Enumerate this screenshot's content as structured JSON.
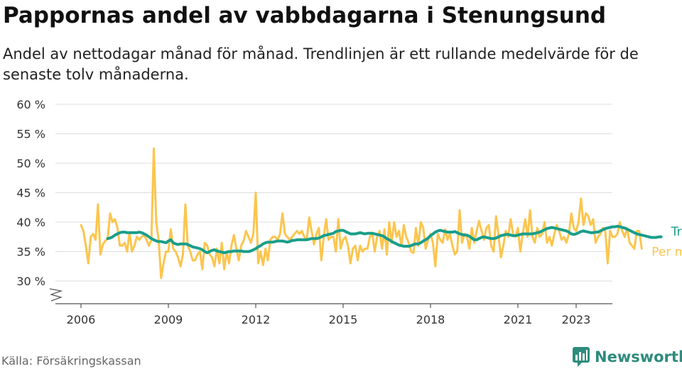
{
  "header": {
    "title": "Pappornas andel av vabbdagarna i Stenungsund",
    "subtitle": "Andel av nettodagar månad för månad. Trendlinjen är ett rullande medelvärde för de senaste tolv månaderna."
  },
  "footer": {
    "source": "Källa: Försäkringskassan",
    "brand": "Newsworthy"
  },
  "chart_data": {
    "type": "line",
    "title": "Pappornas andel av vabbdagarna i Stenungsund",
    "xlabel": "",
    "ylabel": "",
    "ylim": [
      30,
      60
    ],
    "y_ticks": [
      30,
      35,
      40,
      45,
      50,
      55,
      60
    ],
    "y_tick_labels": [
      "30 %",
      "35 %",
      "40 %",
      "45 %",
      "50 %",
      "55 %",
      "60 %"
    ],
    "x_ticks": [
      2006,
      2009,
      2012,
      2015,
      2018,
      2021,
      2023
    ],
    "x_tick_labels": [
      "2006",
      "2009",
      "2012",
      "2015",
      "2018",
      "2021",
      "2023"
    ],
    "x_range": [
      "2006-01",
      "2023-05"
    ],
    "grid": true,
    "axis_break": true,
    "legend_placement": "right end of lines",
    "colors": {
      "monthly": "#fcc54e",
      "trend": "#1a9e8a"
    },
    "series": [
      {
        "name": "Per månad",
        "start": "2006-01",
        "values": [
          39.5,
          38.5,
          36,
          33,
          37.5,
          38,
          37,
          43,
          34.5,
          36.2,
          36.8,
          37.2,
          41.5,
          40,
          40.5,
          39,
          36,
          36,
          36.5,
          35,
          38.3,
          35,
          36,
          37.5,
          37,
          37.5,
          37.8,
          37,
          36,
          37,
          52.5,
          40,
          37,
          30.5,
          33,
          35,
          35,
          38.8,
          35.5,
          35,
          34,
          32.5,
          34.5,
          43,
          36,
          35,
          33.5,
          33.5,
          34.5,
          35,
          32,
          36.5,
          36,
          34.5,
          34,
          32.5,
          35.5,
          33,
          36.5,
          32,
          35,
          33,
          36,
          37.8,
          35.5,
          33.5,
          36,
          36.8,
          38.5,
          37.5,
          36.5,
          38,
          45,
          33,
          35,
          32.7,
          35.5,
          33.5,
          37,
          37.5,
          37.5,
          37,
          38,
          41.5,
          38,
          37.5,
          37,
          37.5,
          38,
          38.5,
          38,
          38.5,
          37.5,
          37,
          40.8,
          38.5,
          36.2,
          38,
          39,
          33.5,
          37.5,
          40.5,
          37,
          37.5,
          37.5,
          35,
          40.5,
          35.5,
          37,
          37.5,
          36,
          33,
          35.5,
          36,
          33.5,
          36,
          35,
          35.5,
          35.5,
          37.5,
          38.2,
          35,
          37.5,
          38.5,
          35.5,
          38.8,
          34.5,
          40,
          36.5,
          40,
          37.5,
          38.5,
          36,
          39.5,
          37.5,
          36.5,
          35,
          34.8,
          39,
          36,
          40,
          39,
          35.5,
          37,
          38,
          36.5,
          32.5,
          38,
          37,
          36.5,
          38.8,
          37,
          38,
          36,
          34.5,
          35,
          42,
          36.5,
          38,
          37.5,
          35.5,
          39,
          36.5,
          38.5,
          40.2,
          38.5,
          37,
          39,
          39.5,
          36,
          35,
          41,
          37.8,
          34,
          36,
          38.5,
          37.5,
          40.5,
          38,
          37.5,
          39,
          35,
          38,
          40.5,
          37.5,
          42,
          37.5,
          36.5,
          39,
          37.5,
          38,
          40,
          36.5,
          37.5,
          36,
          38,
          39.5,
          38.5,
          37,
          37.5,
          36.5,
          38,
          41.5,
          39,
          38.5,
          40,
          44,
          39.5,
          41.5,
          41,
          39.5,
          40.5,
          36.5,
          37.5,
          38,
          39,
          38.5,
          33,
          38.5,
          37.5,
          37.5,
          38,
          40,
          38.5,
          37.5,
          39,
          36.5,
          36,
          35.5,
          38.5,
          38.5,
          35.5
        ]
      },
      {
        "name": "Trend",
        "start": "2006-12",
        "values": [
          37.2,
          37.3,
          37.5,
          37.8,
          38,
          38.2,
          38.3,
          38.3,
          38.2,
          38.2,
          38.2,
          38.2,
          38.2,
          38.3,
          38.2,
          38,
          37.8,
          37.5,
          37.2,
          37,
          36.8,
          36.7,
          36.7,
          36.6,
          36.5,
          36.8,
          37,
          36.5,
          36.3,
          36.2,
          36.3,
          36.3,
          36.3,
          36.2,
          36,
          35.8,
          35.7,
          35.6,
          35.5,
          35.3,
          35,
          34.8,
          35,
          35.2,
          35.3,
          35.1,
          35,
          34.9,
          34.8,
          34.9,
          35,
          35,
          35.1,
          35.1,
          35.1,
          35.1,
          35,
          35,
          35,
          35.1,
          35.3,
          35.5,
          35.8,
          36,
          36.3,
          36.5,
          36.6,
          36.6,
          36.6,
          36.7,
          36.8,
          36.8,
          36.8,
          36.7,
          36.6,
          36.7,
          36.9,
          36.9,
          37,
          37,
          37,
          37,
          37,
          37.1,
          37.2,
          37.2,
          37.2,
          37.3,
          37.5,
          37.7,
          37.8,
          37.9,
          38,
          38.1,
          38.4,
          38.5,
          38.6,
          38.6,
          38.4,
          38.2,
          38,
          38,
          38,
          38.1,
          38.2,
          38.1,
          38,
          38.1,
          38.1,
          38.1,
          38,
          37.9,
          37.8,
          37.7,
          37.5,
          37.2,
          37,
          36.7,
          36.5,
          36.3,
          36.1,
          36,
          35.9,
          35.9,
          35.9,
          36,
          36.2,
          36.3,
          36.3,
          36.5,
          36.8,
          37,
          37.3,
          37.7,
          38,
          38.3,
          38.5,
          38.6,
          38.5,
          38.4,
          38.3,
          38.3,
          38.3,
          38.4,
          38.2,
          38,
          37.9,
          37.8,
          37.8,
          37.6,
          37.3,
          37,
          37,
          37.2,
          37.4,
          37.5,
          37.4,
          37.3,
          37.2,
          37.2,
          37.3,
          37.5,
          37.7,
          37.8,
          37.9,
          37.9,
          37.8,
          37.7,
          37.7,
          37.8,
          37.9,
          38,
          38,
          38,
          38,
          38,
          38.1,
          38.2,
          38.3,
          38.5,
          38.7,
          38.9,
          39,
          39.1,
          39,
          38.9,
          38.8,
          38.7,
          38.6,
          38.5,
          38.3,
          38,
          37.9,
          38,
          38.2,
          38.4,
          38.5,
          38.4,
          38.3,
          38.2,
          38.2,
          38.3,
          38.3,
          38.5,
          38.7,
          38.9,
          39,
          39.1,
          39.2,
          39.2,
          39.3,
          39.2,
          39.1,
          39,
          38.8,
          38.6,
          38.4,
          38.2,
          38,
          37.9,
          37.8,
          37.7,
          37.6,
          37.5,
          37.4,
          37.4,
          37.4,
          37.5,
          37.5
        ]
      }
    ]
  }
}
